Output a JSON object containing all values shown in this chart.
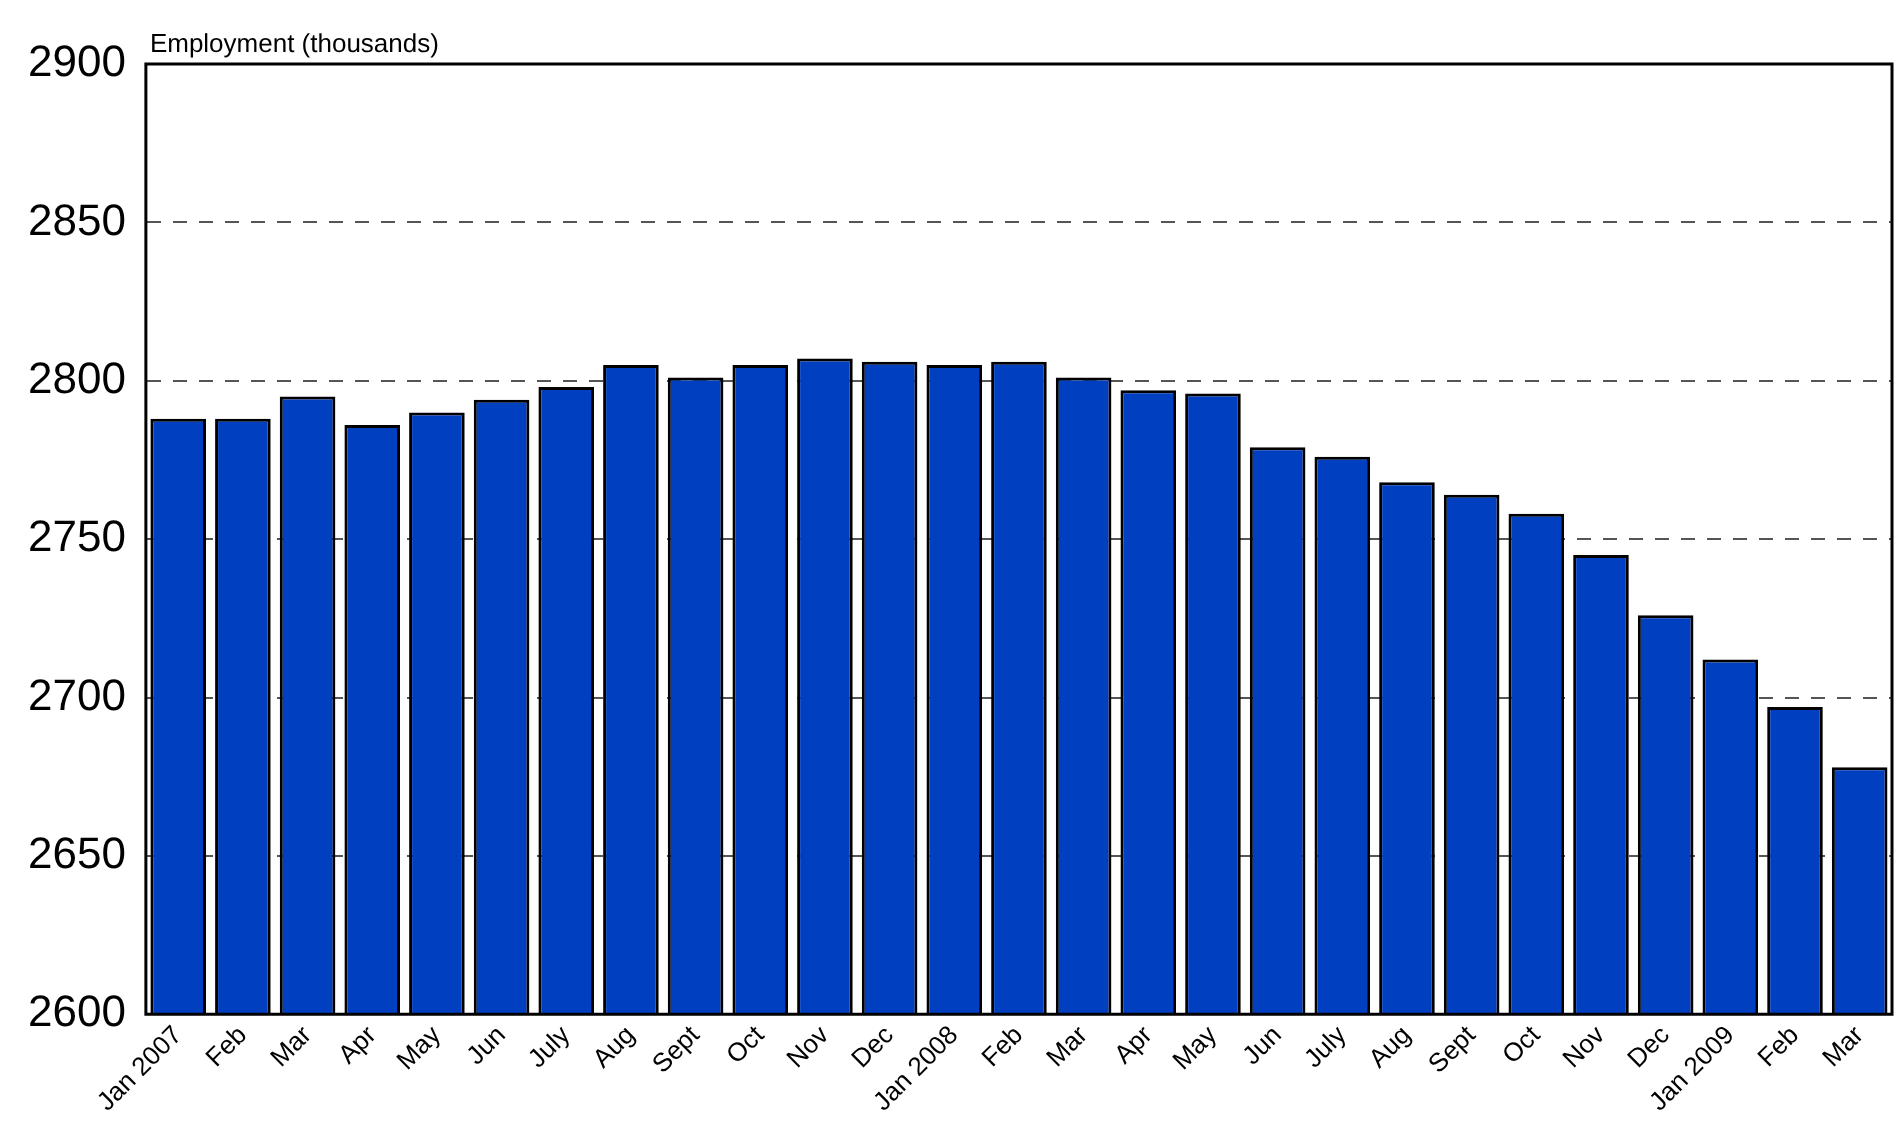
{
  "chart_data": {
    "type": "bar",
    "ylabel": "Employment (thousands)",
    "categories": [
      "Jan 2007",
      "Feb",
      "Mar",
      "Apr",
      "May",
      "Jun",
      "July",
      "Aug",
      "Sept",
      "Oct",
      "Nov",
      "Dec",
      "Jan 2008",
      "Feb",
      "Mar",
      "Apr",
      "May",
      "Jun",
      "July",
      "Aug",
      "Sept",
      "Oct",
      "Nov",
      "Dec",
      "Jan 2009",
      "Feb",
      "Mar"
    ],
    "values": [
      2788,
      2788,
      2795,
      2786,
      2790,
      2794,
      2798,
      2805,
      2801,
      2805,
      2807,
      2806,
      2805,
      2806,
      2801,
      2797,
      2796,
      2779,
      2776,
      2768,
      2764,
      2758,
      2745,
      2726,
      2712,
      2697,
      2678
    ],
    "color": "#0040c0",
    "ylim": [
      2600,
      2900
    ],
    "yticks": [
      2600,
      2650,
      2700,
      2750,
      2800,
      2850,
      2900
    ],
    "grid": "y",
    "legend": false
  }
}
